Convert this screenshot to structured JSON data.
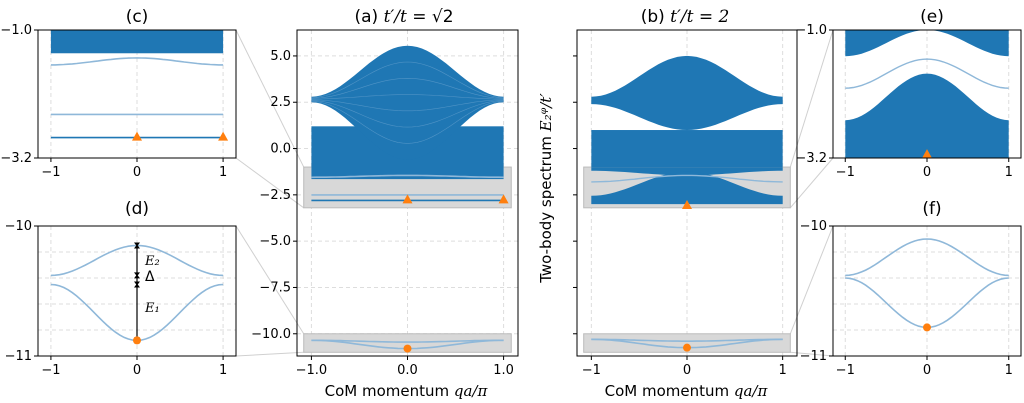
{
  "chart_data": [
    {
      "id": "a",
      "type": "line",
      "title": "(a) t′/t = √2",
      "xlabel": "CoM momentum qa/π",
      "ylabel": "",
      "xlim": [
        -1.15,
        1.15
      ],
      "ylim": [
        -11.2,
        6.4
      ],
      "xticks": [
        -1,
        0,
        1
      ],
      "xticklabels": [
        "−1.0",
        "0.0",
        "1.0"
      ],
      "yticks": [
        5.0,
        2.5,
        0.0,
        -2.5,
        -5.0,
        -7.5,
        -10.0
      ],
      "yticklabels": [
        "5.0",
        "2.5",
        "0.0",
        "−2.5",
        "−5.0",
        "−7.5",
        "−10.0"
      ],
      "grid": true,
      "continuum_upper": {
        "peak": 5.55,
        "edge_top": 2.8,
        "edge_bottom": 2.5,
        "trough": -0.6,
        "color": "#1f77b4"
      },
      "continuum_lower": {
        "top": 1.2,
        "bottom": -1.65,
        "color": "#1f77b4"
      },
      "bound_states": [
        {
          "x": [
            -1,
            0,
            1
          ],
          "y": [
            -1.55,
            -1.45,
            -1.55
          ]
        },
        {
          "x": [
            -1,
            0,
            1
          ],
          "y": [
            -2.5,
            -2.5,
            -2.5
          ]
        },
        {
          "x": [
            -1,
            0,
            1
          ],
          "y": [
            -2.8,
            -2.8,
            -2.8
          ]
        },
        {
          "x": [
            -1,
            0,
            1
          ],
          "y": [
            -10.35,
            -10.45,
            -10.35
          ]
        },
        {
          "x": [
            -1,
            0,
            1
          ],
          "y": [
            -10.35,
            -10.8,
            -10.35
          ]
        }
      ],
      "highlight_boxes": [
        [
          -1.0,
          -3.2
        ],
        [
          -10.0,
          -11.0
        ]
      ],
      "markers": [
        {
          "x": 0,
          "y": -2.8,
          "shape": "triangle",
          "color": "#ff7f0e"
        },
        {
          "x": 1,
          "y": -2.8,
          "shape": "triangle",
          "color": "#ff7f0e"
        },
        {
          "x": 0,
          "y": -10.8,
          "shape": "circle",
          "color": "#ff7f0e"
        }
      ]
    },
    {
      "id": "b",
      "type": "line",
      "title": "(b) t′/t = 2",
      "xlabel": "CoM momentum qa/π",
      "ylabel": "Two-body spectrum E₂^q/t′",
      "xlim": [
        -1.15,
        1.15
      ],
      "ylim": [
        -11.2,
        6.4
      ],
      "xticks": [
        -1,
        0,
        1
      ],
      "xticklabels": [
        "−1",
        "0",
        "1"
      ],
      "grid": true,
      "continuum_upper": {
        "peak": 5.0,
        "edge_top": 2.8,
        "edge_bottom": 2.4,
        "trough": 1.0,
        "color": "#1f77b4"
      },
      "continuum_lower": {
        "top": 1.0,
        "bottom": -1.0,
        "color": "#1f77b4"
      },
      "continuum_bound": {
        "top_edge": -2.55,
        "top_peak": -1.25,
        "bottom": -3.0,
        "color": "#1f77b4"
      },
      "bound_states": [
        {
          "x": [
            -1,
            0,
            1
          ],
          "y": [
            -10.3,
            -10.4,
            -10.3
          ]
        },
        {
          "x": [
            -1,
            0,
            1
          ],
          "y": [
            -10.3,
            -10.75,
            -10.3
          ]
        }
      ],
      "highlight_boxes": [
        [
          -1.0,
          -3.2
        ],
        [
          -10.0,
          -11.0
        ]
      ],
      "markers": [
        {
          "x": 0,
          "y": -3.1,
          "shape": "triangle",
          "color": "#ff7f0e"
        },
        {
          "x": 0,
          "y": -10.75,
          "shape": "circle",
          "color": "#ff7f0e"
        }
      ]
    },
    {
      "id": "c",
      "type": "line",
      "title": "(c)",
      "xlim": [
        -1.15,
        1.15
      ],
      "ylim": [
        -3.2,
        -1.0
      ],
      "yticklabels": [
        "−1.0",
        "−3.2"
      ],
      "xticklabels": [
        "−1",
        "0",
        "1"
      ],
      "continuum_top": {
        "top": -1.0,
        "bottom": -1.4
      },
      "bound_states": [
        {
          "x": [
            -1,
            0,
            1
          ],
          "y": [
            -1.6,
            -1.48,
            -1.6
          ]
        },
        {
          "x": [
            -1,
            0,
            1
          ],
          "y": [
            -2.45,
            -2.45,
            -2.45
          ]
        },
        {
          "x": [
            -1,
            0,
            1
          ],
          "y": [
            -2.85,
            -2.85,
            -2.85
          ]
        }
      ],
      "markers": [
        {
          "x": 0,
          "y": -2.85,
          "shape": "triangle",
          "color": "#ff7f0e"
        },
        {
          "x": 1,
          "y": -2.85,
          "shape": "triangle",
          "color": "#ff7f0e"
        }
      ]
    },
    {
      "id": "d",
      "type": "line",
      "title": "(d)",
      "xlim": [
        -1.15,
        1.15
      ],
      "ylim": [
        -11.0,
        -10.0
      ],
      "yticklabels": [
        "−10",
        "−11"
      ],
      "xticklabels": [
        "−1",
        "0",
        "1"
      ],
      "bound_states": [
        {
          "x": [
            -1,
            0,
            1
          ],
          "y": [
            -10.38,
            -10.15,
            -10.38
          ]
        },
        {
          "x": [
            -1,
            0,
            1
          ],
          "y": [
            -10.45,
            -10.88,
            -10.45
          ]
        }
      ],
      "annotations": [
        "E₂",
        "Δ",
        "E₁"
      ],
      "markers": [
        {
          "x": 0,
          "y": -10.88,
          "shape": "circle",
          "color": "#ff7f0e"
        }
      ]
    },
    {
      "id": "e",
      "type": "line",
      "title": "(e)",
      "xlim": [
        -1.15,
        1.15
      ],
      "ylim": [
        -3.2,
        -1.0
      ],
      "yticklabels": [
        "−1.0",
        "−3.2"
      ],
      "xticklabels": [
        "−1",
        "0",
        "1"
      ],
      "continuum_top": {
        "edge": -1.45,
        "peak": -1.0
      },
      "continuum_bound": {
        "edge": -2.55,
        "peak": -1.75,
        "bottom": -3.2
      },
      "markers": [
        {
          "x": 0,
          "y": -3.15,
          "shape": "triangle",
          "color": "#ff7f0e"
        }
      ]
    },
    {
      "id": "f",
      "type": "line",
      "title": "(f)",
      "xlim": [
        -1.15,
        1.15
      ],
      "ylim": [
        -11.0,
        -10.0
      ],
      "yticklabels": [
        "−10",
        "−11"
      ],
      "xticklabels": [
        "−1",
        "0",
        "1"
      ],
      "bound_states": [
        {
          "x": [
            -1,
            0,
            1
          ],
          "y": [
            -10.38,
            -10.1,
            -10.38
          ]
        },
        {
          "x": [
            -1,
            0,
            1
          ],
          "y": [
            -10.4,
            -10.78,
            -10.4
          ]
        }
      ],
      "markers": [
        {
          "x": 0,
          "y": -10.78,
          "shape": "circle",
          "color": "#ff7f0e"
        }
      ]
    }
  ],
  "text": {
    "title_a_prefix": "(a) ",
    "title_a_expr": "t′/t = ",
    "title_a_sqrt": "√2",
    "title_b_prefix": "(b) ",
    "title_b_expr": "t′/t = 2",
    "title_c": "(c)",
    "title_d": "(d)",
    "title_e": "(e)",
    "title_f": "(f)",
    "xlabel_prefix": "CoM momentum ",
    "xlabel_expr": "qa/π",
    "ylabel_prefix": "Two-body spectrum ",
    "ylabel_expr": "E₂ᵠ/t′",
    "ann_e2": "E₂",
    "ann_delta": "Δ",
    "ann_e1": "E₁"
  },
  "colors": {
    "band": "#1f77b4",
    "band_light": "#8fb8d9",
    "marker": "#ff7f0e",
    "box": "#d8d8d8",
    "grid": "#dddddd"
  }
}
